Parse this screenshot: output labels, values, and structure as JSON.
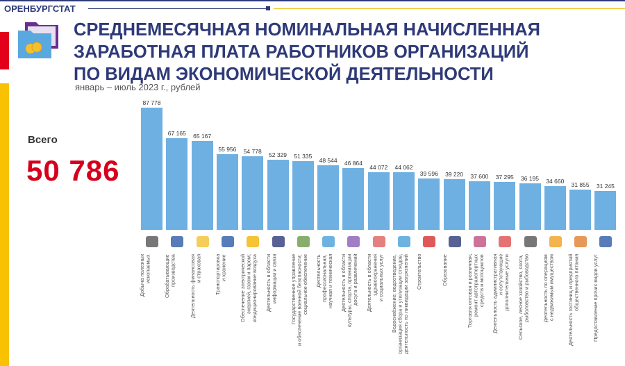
{
  "header": {
    "brand": "ОРЕНБУРГСТАТ",
    "title": "СРЕДНЕМЕСЯЧНАЯ НОМИНАЛЬНАЯ НАЧИСЛЕННАЯ\nЗАРАБОТНАЯ ПЛАТА РАБОТНИКОВ ОРГАНИЗАЦИЙ\nПО ВИДАМ ЭКОНОМИЧЕСКОЙ ДЕЯТЕЛЬНОСТИ",
    "subtitle": "январь – июль 2023 г., рублей"
  },
  "total": {
    "label": "Всего",
    "value": "50 786"
  },
  "colors": {
    "bar": "#6fb0e2",
    "title": "#2e3a78",
    "total": "#d6001c",
    "accent_red": "#e3001b",
    "accent_yellow": "#f8c200"
  },
  "chart_data": {
    "type": "bar",
    "title": "Среднемесячная номинальная начисленная заработная плата работников организаций по видам экономической деятельности",
    "ylabel": "рублей",
    "ylim": [
      4700,
      87778
    ],
    "categories": [
      "Добыча полезных\nископаемых",
      "Обрабатывающие\nпроизводства",
      "Деятельность финансовая\nи страховая",
      "Транспортировка\nи хранение",
      "Обеспечение электрической\nэнергией, газом и паром;\nкондиционирование воздуха",
      "Деятельность в области\nинформации и связи",
      "Государственное управление\nи обеспечение военной безопасности;\nсоциальное обеспечение",
      "Деятельность\nпрофессиональная,\nнаучная и техническая",
      "Деятельность в области\nкультуры, спорта, организации\nдосуга и развлечений",
      "Деятельность в области\nздравоохранения\nи социальных услуг",
      "Водоснабжение; водоотведение,\nорганизация сбора и утилизации отходов,\nдеятельность по ликвидации загрязнений",
      "Строительство",
      "Образование",
      "Торговля оптовая и розничная;\nремонт автотранспортных\nсредств и мотоциклов",
      "Деятельность административная\nи сопутствующие\nдополнительные услуги",
      "Сельское, лесное хозяйство, охота,\nрыболовство и рыбоводство",
      "Деятельность по операциям\nс недвижимым имуществом",
      "Деятельность гостиниц и предприятий\nобщественного питания",
      "Предоставление прочих видов услуг"
    ],
    "values": [
      87778,
      67165,
      65167,
      55956,
      54778,
      52329,
      51335,
      48544,
      46864,
      44072,
      44062,
      39596,
      39220,
      37600,
      37295,
      36195,
      34660,
      31855,
      31245
    ],
    "value_labels": [
      "87 778",
      "67 165",
      "65 167",
      "55 956",
      "54 778",
      "52 329",
      "51 335",
      "48 544",
      "46 864",
      "44 072",
      "44 062",
      "39 596",
      "39 220",
      "37 600",
      "37 295",
      "36 195",
      "34 660",
      "31 855",
      "31 245"
    ],
    "icons": [
      "mining-icon",
      "manufacturing-icon",
      "finance-icon",
      "transport-icon",
      "energy-icon",
      "communication-icon",
      "defense-icon",
      "science-icon",
      "culture-icon",
      "healthcare-icon",
      "water-icon",
      "construction-icon",
      "education-icon",
      "trade-icon",
      "administrative-icon",
      "agriculture-icon",
      "real-estate-icon",
      "hotel-icon",
      "services-icon"
    ],
    "icon_colors": [
      "#555",
      "#2e5aa8",
      "#f2c230",
      "#2e5aa8",
      "#f2b400",
      "#2e3a78",
      "#6a9a4a",
      "#4aa0d8",
      "#8a5cb8",
      "#e06060",
      "#4aa0d8",
      "#d83030",
      "#2e3a78",
      "#c05080",
      "#e05050",
      "#555",
      "#f0a020",
      "#e08030",
      "#2e5aa8"
    ]
  }
}
